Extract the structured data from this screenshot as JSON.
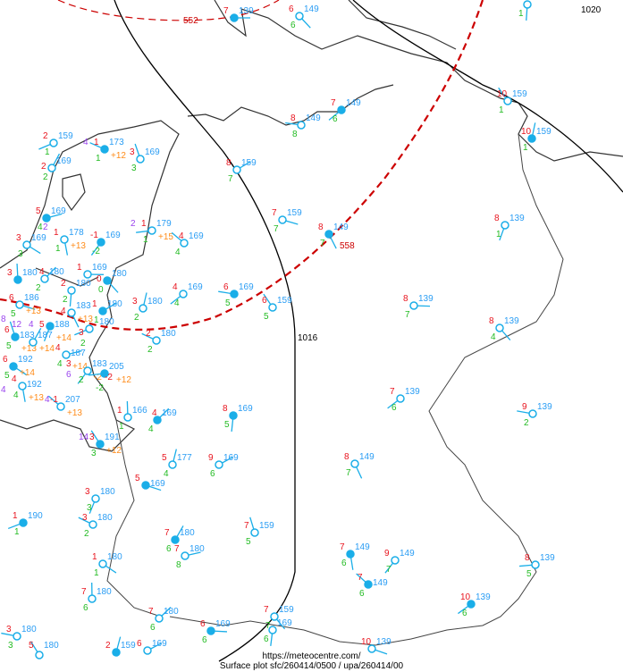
{
  "footer": {
    "url": "https://meteocentre.com/",
    "caption": "Surface plot sfc/260414/0500 / upa/260414/00"
  },
  "isobar_labels": [
    "1016",
    "1020"
  ],
  "thickness_labels": [
    "552",
    "558"
  ],
  "colors": {
    "temperature": "#e8141e",
    "pressure": "#2a9df4",
    "dewpoint": "#22bb22",
    "weather": "#9a44ee",
    "tendency": "#ff8c1a",
    "thickness": "#cc0000",
    "isobar": "#000000",
    "coast": "#333333",
    "station": "#1aaee8",
    "cloud": "#ff22dd"
  },
  "stations": [
    {
      "t": "7",
      "p": "139",
      "d": ""
    },
    {
      "t": "6",
      "p": "149",
      "d": "6"
    },
    {
      "t": "",
      "p": "",
      "d": "1"
    },
    {
      "t": "7",
      "p": "149",
      "d": "6"
    },
    {
      "t": "8",
      "p": "149",
      "d": "8"
    },
    {
      "t": "10",
      "p": "159",
      "d": "1"
    },
    {
      "t": "10",
      "p": "159",
      "d": "1"
    },
    {
      "t": "8",
      "p": "159",
      "d": "7"
    },
    {
      "t": "7",
      "p": "159",
      "d": "7"
    },
    {
      "t": "8",
      "p": "149",
      "d": "7"
    },
    {
      "t": "8",
      "p": "139",
      "d": "1"
    },
    {
      "t": "2",
      "p": "159",
      "d": "1"
    },
    {
      "t": "1",
      "p": "173",
      "d": "1",
      "w": "4",
      "g": "+12"
    },
    {
      "t": "3",
      "p": "169",
      "d": "3"
    },
    {
      "t": "2",
      "p": "169",
      "d": "2"
    },
    {
      "t": "5",
      "p": "169",
      "d": "4"
    },
    {
      "t": "3",
      "p": "169",
      "d": "3"
    },
    {
      "t": "1",
      "p": "178",
      "d": "1",
      "w": "2",
      "g": "+13"
    },
    {
      "t": "-1",
      "p": "169",
      "d": "-2"
    },
    {
      "t": "1",
      "p": "179",
      "d": "1",
      "w": "2",
      "g": "+15"
    },
    {
      "t": "4",
      "p": "169",
      "d": "4"
    },
    {
      "t": "3",
      "p": "180",
      "d": ""
    },
    {
      "t": "4",
      "p": "180",
      "d": "2"
    },
    {
      "t": "1",
      "p": "169",
      "d": ""
    },
    {
      "t": "0",
      "p": "180",
      "d": "0"
    },
    {
      "t": "2",
      "p": "180",
      "d": "2"
    },
    {
      "t": "4",
      "p": "169",
      "d": "4"
    },
    {
      "t": "6",
      "p": "169",
      "d": "5"
    },
    {
      "t": "6",
      "p": "159",
      "d": "5"
    },
    {
      "t": "3",
      "p": "180",
      "d": "2"
    },
    {
      "t": "1",
      "p": "180",
      "d": "1"
    },
    {
      "t": "6",
      "p": "186",
      "d": "5",
      "g": "+13"
    },
    {
      "t": "4",
      "p": "183",
      "d": "",
      "g": "+13"
    },
    {
      "t": "5",
      "p": "188",
      "d": "",
      "w": "4",
      "g": "+14"
    },
    {
      "t": "3",
      "p": "180",
      "d": "2"
    },
    {
      "t": "2",
      "p": "180",
      "d": "2"
    },
    {
      "t": "6",
      "p": "183",
      "d": "5",
      "w": "8",
      "g": "+13"
    },
    {
      "t": "",
      "p": "187",
      "d": "",
      "w": "12",
      "g": "+14"
    },
    {
      "t": "4",
      "p": "187",
      "d": "4",
      "g": "+14"
    },
    {
      "t": "6",
      "p": "192",
      "d": "5",
      "g": "+14"
    },
    {
      "t": "4",
      "p": "192",
      "d": "4",
      "w": "4",
      "g": "+13"
    },
    {
      "t": "3",
      "p": "183",
      "d": "2",
      "w": "6",
      "g": "-2"
    },
    {
      "t": "-2",
      "p": "205",
      "d": "-2",
      "g": "+12"
    },
    {
      "t": "-1",
      "p": "207",
      "d": "",
      "w": "4",
      "g": "+13"
    },
    {
      "t": "1",
      "p": "166",
      "d": "1"
    },
    {
      "t": "4",
      "p": "169",
      "d": "4"
    },
    {
      "t": "8",
      "p": "139",
      "d": "7"
    },
    {
      "t": "8",
      "p": "139",
      "d": "4"
    },
    {
      "t": "8",
      "p": "169",
      "d": "5"
    },
    {
      "t": "7",
      "p": "139",
      "d": "6"
    },
    {
      "t": "9",
      "p": "139",
      "d": "2"
    },
    {
      "t": "3",
      "p": "191",
      "d": "3",
      "w": "14",
      "g": "+12"
    },
    {
      "t": "5",
      "p": "177",
      "d": "4"
    },
    {
      "t": "9",
      "p": "169",
      "d": "6"
    },
    {
      "t": "5",
      "p": "169",
      "d": ""
    },
    {
      "t": "8",
      "p": "149",
      "d": "7"
    },
    {
      "t": "3",
      "p": "180",
      "d": "3"
    },
    {
      "t": "1",
      "p": "190",
      "d": "1"
    },
    {
      "t": "3",
      "p": "180",
      "d": "2"
    },
    {
      "t": "7",
      "p": "159",
      "d": "5"
    },
    {
      "t": "7",
      "p": "180",
      "d": "6"
    },
    {
      "t": "7",
      "p": "180",
      "d": "8"
    },
    {
      "t": "1",
      "p": "180",
      "d": "1"
    },
    {
      "t": "7",
      "p": "149",
      "d": "6"
    },
    {
      "t": "9",
      "p": "149",
      "d": "7"
    },
    {
      "t": "8",
      "p": "139",
      "d": "5"
    },
    {
      "t": "7",
      "p": "149",
      "d": "6"
    },
    {
      "t": "7",
      "p": "180",
      "d": "6"
    },
    {
      "t": "7",
      "p": "180",
      "d": "6"
    },
    {
      "t": "6",
      "p": "169",
      "d": "6"
    },
    {
      "t": "7",
      "p": "159",
      "d": "7"
    },
    {
      "t": "",
      "p": "169",
      "d": "6"
    },
    {
      "t": "10",
      "p": "139",
      "d": "6"
    },
    {
      "t": "3",
      "p": "180",
      "d": "3"
    },
    {
      "t": "5",
      "p": "180",
      "d": ""
    },
    {
      "t": "2",
      "p": "159",
      "d": ""
    },
    {
      "t": "6",
      "p": "169",
      "d": ""
    },
    {
      "t": "10",
      "p": "139",
      "d": ""
    }
  ]
}
